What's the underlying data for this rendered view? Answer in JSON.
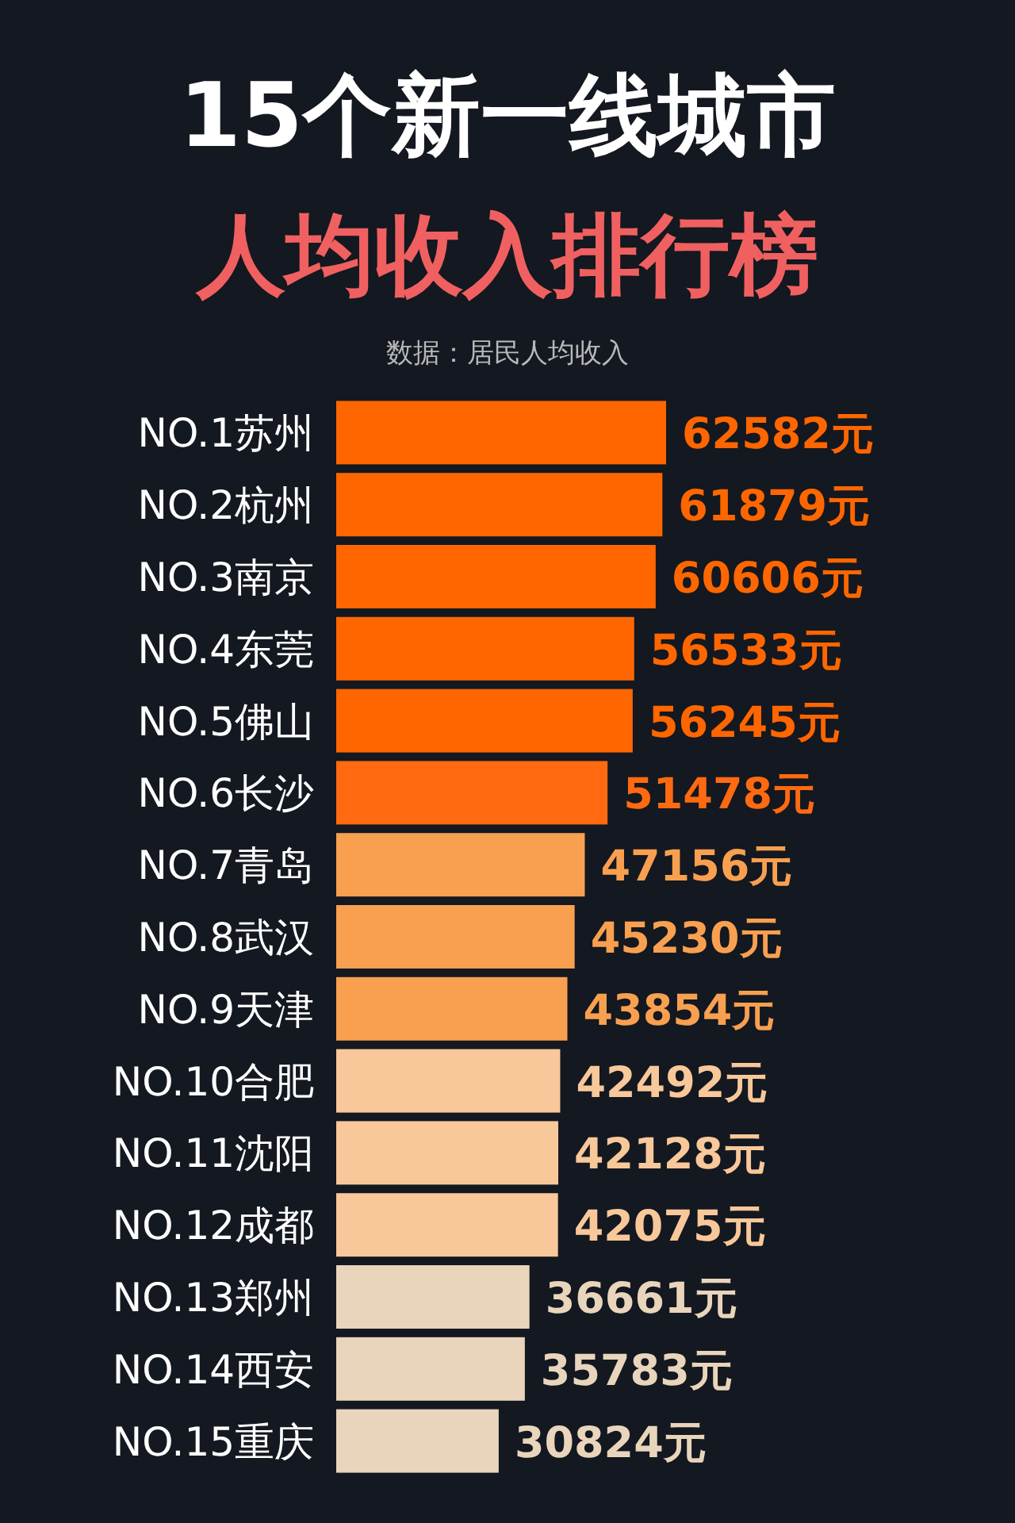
{
  "chart_data": {
    "type": "bar",
    "orientation": "horizontal",
    "title": "15个新一线城市",
    "subtitle": "人均收入排行榜",
    "annotations": [
      "数据：居民人均收入"
    ],
    "categories": [
      "NO.1苏州",
      "NO.2杭州",
      "NO.3南京",
      "NO.4东莞",
      "NO.5佛山",
      "NO.6长沙",
      "NO.7青岛",
      "NO.8武汉",
      "NO.9天津",
      "NO.10合肥",
      "NO.11沈阳",
      "NO.12成都",
      "NO.13郑州",
      "NO.14西安",
      "NO.15重庆"
    ],
    "values": [
      62582,
      61879,
      60606,
      56533,
      56245,
      51478,
      47156,
      45230,
      43854,
      42492,
      42128,
      42075,
      36661,
      35783,
      30824
    ],
    "colors": [
      "#ff6600",
      "#ff6600",
      "#ff6600",
      "#ff6600",
      "#ff6600",
      "#ff6a10",
      "#f8a050",
      "#f8a050",
      "#f8a050",
      "#f8c89a",
      "#f8c89a",
      "#f8c89a",
      "#e8d5bc",
      "#e8d5bc",
      "#e8d5bc"
    ],
    "value_labels": [
      "62582元",
      "61879元",
      "60606元",
      "56533元",
      "56245元",
      "51478元",
      "47156元",
      "45230元",
      "43854元",
      "42492元",
      "42128元",
      "42075元",
      "36661元",
      "35783元",
      "30824元"
    ]
  }
}
